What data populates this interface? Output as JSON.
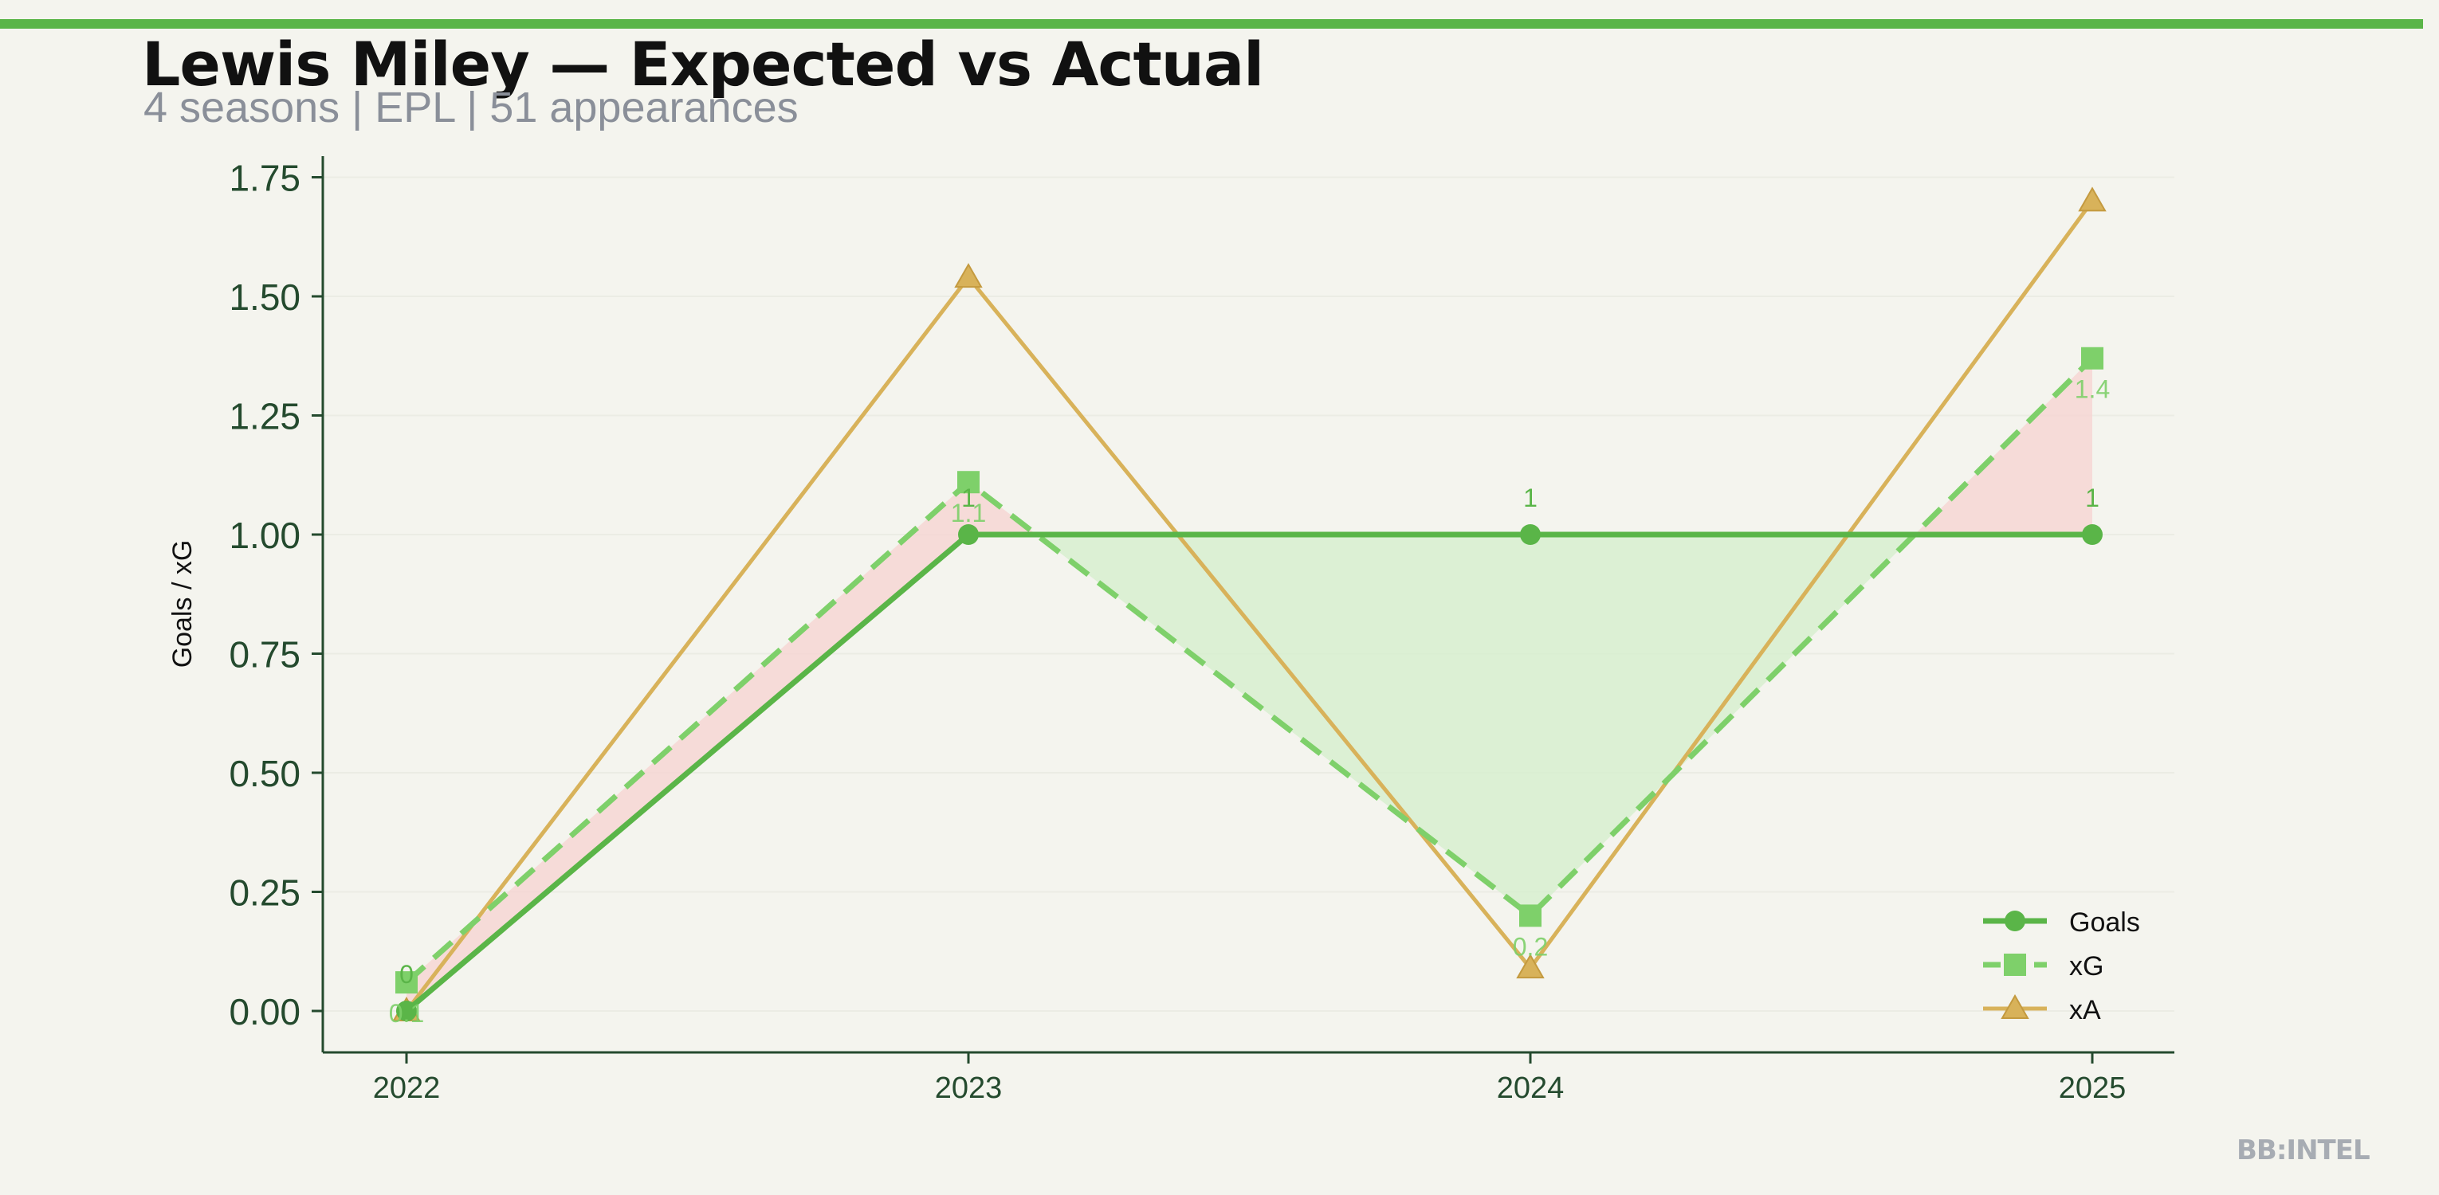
{
  "header": {
    "title": "Lewis Miley — Expected vs Actual",
    "subtitle": "4 seasons | EPL | 51 appearances"
  },
  "watermark": "BB:INTEL",
  "colors": {
    "accent": "#5ab548",
    "goals": "#5ab548",
    "xg": "#7ed06a",
    "xa": "#d8b25a",
    "overperform_fill": "#d7efcf",
    "underperform_fill": "#f6d6d3",
    "axis": "#244a2e"
  },
  "chart_data": {
    "type": "line",
    "title": "Lewis Miley — Expected vs Actual",
    "subtitle": "4 seasons | EPL | 51 appearances",
    "xlabel": "",
    "ylabel": "Goals / xG",
    "x": [
      "2022",
      "2023",
      "2024",
      "2025"
    ],
    "ylim": [
      -0.15,
      1.8
    ],
    "yticks": [
      "0.00",
      "0.25",
      "0.50",
      "0.75",
      "1.00",
      "1.25",
      "1.50",
      "1.75"
    ],
    "ytick_values": [
      0,
      0.25,
      0.5,
      0.75,
      1.0,
      1.25,
      1.5,
      1.75
    ],
    "grid": true,
    "legend_position": "bottom-right",
    "series": [
      {
        "name": "Goals",
        "values": [
          0,
          1,
          1,
          1
        ],
        "marker": "circle",
        "style": "solid",
        "labels": [
          "0",
          "1",
          "1",
          "1"
        ]
      },
      {
        "name": "xG",
        "values": [
          0.06,
          1.11,
          0.2,
          1.37
        ],
        "marker": "square",
        "style": "dashed",
        "labels": [
          "0.1",
          "1.1",
          "0.2",
          "1.4"
        ]
      },
      {
        "name": "xA",
        "values": [
          0.0,
          1.54,
          0.09,
          1.7
        ],
        "marker": "triangle",
        "style": "solid"
      }
    ]
  }
}
